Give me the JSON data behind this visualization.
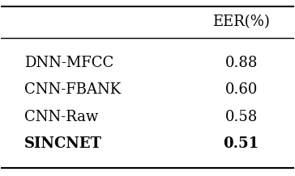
{
  "col_header": "EER(%)",
  "rows": [
    [
      "DNN-MFCC",
      "0.88"
    ],
    [
      "CNN-FBANK",
      "0.60"
    ],
    [
      "CNN-Raw",
      "0.58"
    ],
    [
      "SINCNET",
      "0.51"
    ]
  ],
  "bold_last_row": true,
  "background_color": "#ffffff",
  "text_color": "#000000",
  "font_size": 13
}
